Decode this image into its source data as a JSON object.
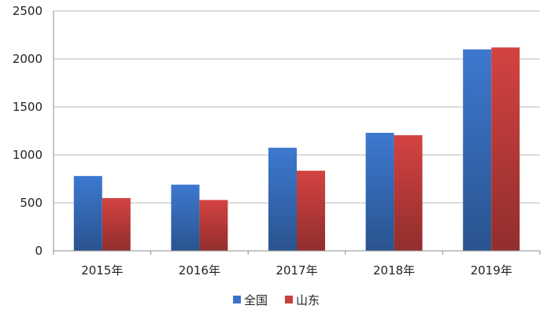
{
  "chart_data": {
    "type": "bar",
    "title": "",
    "xlabel": "",
    "ylabel": "",
    "categories": [
      "2015年",
      "2016年",
      "2017年",
      "2018年",
      "2019年"
    ],
    "series": [
      {
        "name": "全国",
        "values": [
          780,
          690,
          1075,
          1230,
          2100
        ],
        "color": "#3a73c6"
      },
      {
        "name": "山东",
        "values": [
          550,
          530,
          835,
          1205,
          2120
        ],
        "color": "#c9403e"
      }
    ],
    "ylim": [
      0,
      2500
    ],
    "yticks": [
      0,
      500,
      1000,
      1500,
      2000,
      2500
    ],
    "grid": true,
    "legend": "bottom-center"
  }
}
